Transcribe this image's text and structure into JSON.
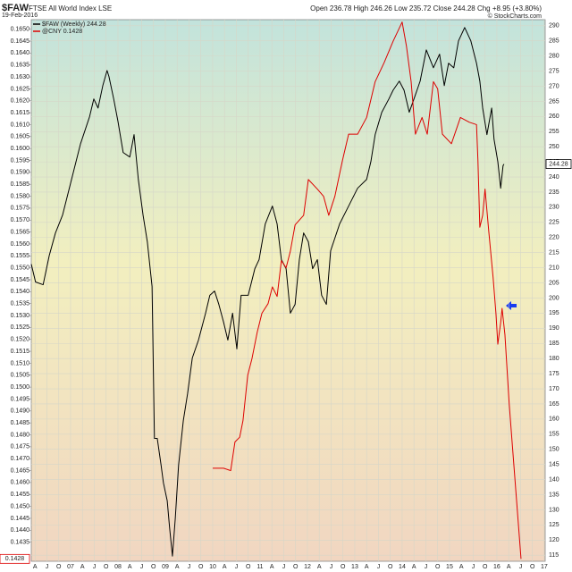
{
  "chart_data": {
    "type": "line",
    "title": "$FAW",
    "subtitle": "FTSE All World Index LSE",
    "date": "19-Feb-2016",
    "quote": "Open 236.78 High 246.26 Low 235.72 Close 244.28 Chg +8.95 (+3.80%)",
    "copyright": "© StockCharts.com",
    "grid": true,
    "xlim": [
      2006.17,
      2017.02
    ],
    "ylim": [
      0.1427,
      0.1654
    ],
    "y2lim": [
      113,
      292
    ],
    "xticks": [
      {
        "value": 2006.25,
        "label": "A"
      },
      {
        "value": 2006.5,
        "label": "J"
      },
      {
        "value": 2006.75,
        "label": "O"
      },
      {
        "value": 2007,
        "label": "07"
      },
      {
        "value": 2007.25,
        "label": "A"
      },
      {
        "value": 2007.5,
        "label": "J"
      },
      {
        "value": 2007.75,
        "label": "O"
      },
      {
        "value": 2008,
        "label": "08"
      },
      {
        "value": 2008.25,
        "label": "A"
      },
      {
        "value": 2008.5,
        "label": "J"
      },
      {
        "value": 2008.75,
        "label": "O"
      },
      {
        "value": 2009,
        "label": "09"
      },
      {
        "value": 2009.25,
        "label": "A"
      },
      {
        "value": 2009.5,
        "label": "J"
      },
      {
        "value": 2009.75,
        "label": "O"
      },
      {
        "value": 2010,
        "label": "10"
      },
      {
        "value": 2010.25,
        "label": "A"
      },
      {
        "value": 2010.5,
        "label": "J"
      },
      {
        "value": 2010.75,
        "label": "O"
      },
      {
        "value": 2011,
        "label": "11"
      },
      {
        "value": 2011.25,
        "label": "A"
      },
      {
        "value": 2011.5,
        "label": "J"
      },
      {
        "value": 2011.75,
        "label": "O"
      },
      {
        "value": 2012,
        "label": "12"
      },
      {
        "value": 2012.25,
        "label": "A"
      },
      {
        "value": 2012.5,
        "label": "J"
      },
      {
        "value": 2012.75,
        "label": "O"
      },
      {
        "value": 2013,
        "label": "13"
      },
      {
        "value": 2013.25,
        "label": "A"
      },
      {
        "value": 2013.5,
        "label": "J"
      },
      {
        "value": 2013.75,
        "label": "O"
      },
      {
        "value": 2014,
        "label": "14"
      },
      {
        "value": 2014.25,
        "label": "A"
      },
      {
        "value": 2014.5,
        "label": "J"
      },
      {
        "value": 2014.75,
        "label": "O"
      },
      {
        "value": 2015,
        "label": "15"
      },
      {
        "value": 2015.25,
        "label": "A"
      },
      {
        "value": 2015.5,
        "label": "J"
      },
      {
        "value": 2015.75,
        "label": "O"
      },
      {
        "value": 2016,
        "label": "16"
      },
      {
        "value": 2016.25,
        "label": "A"
      },
      {
        "value": 2016.5,
        "label": "J"
      },
      {
        "value": 2016.75,
        "label": "O"
      },
      {
        "value": 2017,
        "label": "17"
      }
    ],
    "yticks": [
      {
        "value": 0.165,
        "label": "0.1650"
      },
      0.1645,
      {
        "value": 0.164,
        "label": "0.1640"
      },
      0.1635,
      {
        "value": 0.163,
        "label": "0.1630"
      },
      0.1625,
      {
        "value": 0.162,
        "label": "0.1620"
      },
      0.1615,
      {
        "value": 0.161,
        "label": "0.1610"
      },
      0.1605,
      {
        "value": 0.16,
        "label": "0.1600"
      },
      0.1595,
      {
        "value": 0.159,
        "label": "0.1590"
      },
      0.1585,
      {
        "value": 0.158,
        "label": "0.1580"
      },
      0.1575,
      {
        "value": 0.157,
        "label": "0.1570"
      },
      0.1565,
      {
        "value": 0.156,
        "label": "0.1560"
      },
      0.1555,
      {
        "value": 0.155,
        "label": "0.1550"
      },
      0.1545,
      {
        "value": 0.154,
        "label": "0.1540"
      },
      0.1535,
      {
        "value": 0.153,
        "label": "0.1530"
      },
      0.1525,
      {
        "value": 0.152,
        "label": "0.1520"
      },
      0.1515,
      {
        "value": 0.151,
        "label": "0.1510"
      },
      0.1505,
      {
        "value": 0.15,
        "label": "0.1500"
      },
      0.1495,
      {
        "value": 0.149,
        "label": "0.1490"
      },
      0.1485,
      {
        "value": 0.148,
        "label": "0.1480"
      },
      0.1475,
      {
        "value": 0.147,
        "label": "0.1470"
      },
      0.1465,
      {
        "value": 0.146,
        "label": "0.1460"
      },
      0.1455,
      {
        "value": 0.145,
        "label": "0.1450"
      },
      0.1445,
      {
        "value": 0.144,
        "label": "0.1440"
      },
      0.1435
    ],
    "y2ticks": [
      290,
      285,
      280,
      275,
      270,
      265,
      260,
      255,
      250,
      245,
      240,
      235,
      230,
      225,
      220,
      215,
      210,
      205,
      200,
      195,
      190,
      185,
      180,
      175,
      170,
      165,
      160,
      155,
      150,
      145,
      140,
      135,
      130,
      125,
      120,
      115
    ],
    "series": [
      {
        "name": "$FAW (Weekly) 244.28",
        "color": "#000000",
        "axis": "y2",
        "x": [
          2006.17,
          2006.26,
          2006.42,
          2006.55,
          2006.68,
          2006.83,
          2007.02,
          2007.21,
          2007.4,
          2007.49,
          2007.58,
          2007.68,
          2007.77,
          2007.81,
          2007.91,
          2008.0,
          2008.11,
          2008.25,
          2008.34,
          2008.43,
          2008.53,
          2008.62,
          2008.72,
          2008.77,
          2008.83,
          2008.91,
          2008.96,
          2009.04,
          2009.09,
          2009.15,
          2009.21,
          2009.28,
          2009.38,
          2009.47,
          2009.57,
          2009.7,
          2009.85,
          2009.94,
          2010.04,
          2010.13,
          2010.23,
          2010.32,
          2010.42,
          2010.51,
          2010.6,
          2010.75,
          2010.89,
          2010.98,
          2011.11,
          2011.26,
          2011.36,
          2011.45,
          2011.55,
          2011.64,
          2011.74,
          2011.83,
          2011.92,
          2012.02,
          2012.11,
          2012.21,
          2012.3,
          2012.4,
          2012.49,
          2012.68,
          2012.87,
          2013.06,
          2013.25,
          2013.34,
          2013.43,
          2013.57,
          2013.72,
          2013.81,
          2013.94,
          2014.04,
          2014.15,
          2014.25,
          2014.38,
          2014.51,
          2014.66,
          2014.79,
          2014.89,
          2014.98,
          2015.09,
          2015.19,
          2015.32,
          2015.45,
          2015.57,
          2015.64,
          2015.7,
          2015.79,
          2015.89,
          2015.94,
          2016.02,
          2016.08,
          2016.13,
          2016.15
        ],
        "values": [
          211.2,
          205.3,
          204.4,
          214.1,
          221.5,
          227.4,
          239.2,
          251.0,
          259.9,
          265.8,
          262.8,
          270.2,
          275.2,
          273.2,
          265.8,
          258.4,
          248.1,
          246.6,
          254.0,
          239.2,
          227.4,
          218.6,
          203.8,
          153.6,
          153.6,
          144.8,
          138.9,
          133.0,
          124.1,
          114.7,
          127.1,
          144.8,
          159.5,
          168.4,
          180.2,
          186.1,
          195.0,
          200.9,
          202.3,
          197.9,
          192.0,
          186.1,
          195.0,
          183.2,
          200.9,
          200.9,
          209.7,
          212.7,
          224.5,
          230.4,
          224.5,
          212.7,
          209.7,
          195.0,
          197.9,
          212.7,
          221.5,
          218.6,
          209.7,
          212.7,
          200.9,
          197.9,
          215.6,
          224.5,
          230.4,
          236.3,
          239.2,
          245.1,
          254.0,
          261.4,
          265.8,
          268.7,
          271.7,
          268.7,
          261.4,
          265.8,
          271.7,
          282.0,
          276.1,
          280.6,
          270.2,
          277.6,
          276.1,
          285.0,
          289.4,
          285.0,
          277.6,
          271.7,
          262.8,
          254.0,
          262.8,
          252.5,
          245.1,
          236.3,
          243.7,
          244.28
        ]
      },
      {
        "name": "@CNY 0.1428",
        "color": "#dd0000",
        "axis": "y",
        "x": [
          2010.0,
          2010.23,
          2010.38,
          2010.47,
          2010.57,
          2010.64,
          2010.74,
          2010.83,
          2010.94,
          2011.04,
          2011.17,
          2011.26,
          2011.36,
          2011.45,
          2011.55,
          2011.64,
          2011.74,
          2011.92,
          2012.02,
          2012.21,
          2012.34,
          2012.45,
          2012.58,
          2012.74,
          2012.87,
          2013.06,
          2013.25,
          2013.43,
          2013.62,
          2013.81,
          2014.0,
          2014.09,
          2014.19,
          2014.28,
          2014.42,
          2014.53,
          2014.66,
          2014.75,
          2014.85,
          2015.04,
          2015.23,
          2015.42,
          2015.57,
          2015.6,
          2015.64,
          2015.7,
          2015.75,
          2015.83,
          2015.92,
          2015.98,
          2016.02,
          2016.08,
          2016.11,
          2016.17,
          2016.26,
          2016.36,
          2016.51
        ],
        "values": [
          0.1466,
          0.1466,
          0.1465,
          0.1477,
          0.1479,
          0.1486,
          0.1505,
          0.1512,
          0.1523,
          0.1531,
          0.1535,
          0.1542,
          0.1538,
          0.1553,
          0.155,
          0.1557,
          0.1568,
          0.1572,
          0.1587,
          0.1583,
          0.158,
          0.1572,
          0.158,
          0.1595,
          0.1606,
          0.1606,
          0.1613,
          0.1628,
          0.1636,
          0.1645,
          0.1653,
          0.1643,
          0.1628,
          0.1606,
          0.1613,
          0.1606,
          0.1628,
          0.1625,
          0.1606,
          0.1602,
          0.1613,
          0.1611,
          0.161,
          0.1595,
          0.1567,
          0.1572,
          0.1583,
          0.1565,
          0.1546,
          0.1531,
          0.1518,
          0.1527,
          0.1533,
          0.1522,
          0.1493,
          0.1467,
          0.1428
        ]
      }
    ]
  }
}
